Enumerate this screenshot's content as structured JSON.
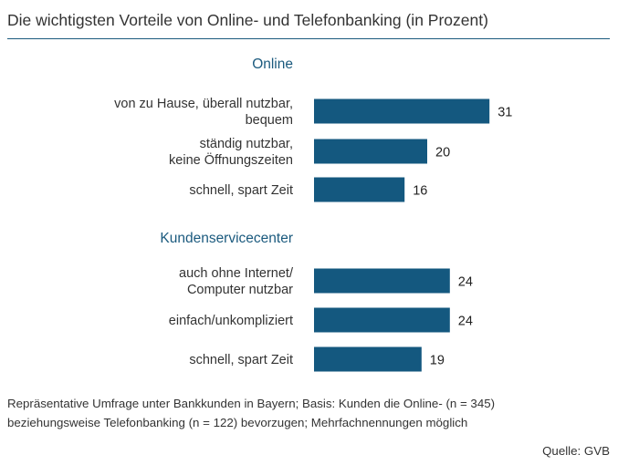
{
  "chart_data": {
    "type": "bar",
    "orientation": "horizontal",
    "title": "Die wichtigsten Vorteile von Online- und Telefonbanking (in Prozent)",
    "groups": [
      {
        "label": "Online",
        "bars": [
          {
            "lines": [
              "von zu Hause, überall nutzbar,",
              "bequem"
            ],
            "value": 31
          },
          {
            "lines": [
              "ständig nutzbar,",
              "keine Öffnungszeiten"
            ],
            "value": 20
          },
          {
            "lines": [
              "schnell, spart Zeit"
            ],
            "value": 16
          }
        ]
      },
      {
        "label": "Kundenservicecenter",
        "bars": [
          {
            "lines": [
              "auch ohne Internet/",
              "Computer nutzbar"
            ],
            "value": 24
          },
          {
            "lines": [
              "einfach/unkompliziert"
            ],
            "value": 24
          },
          {
            "lines": [
              "schnell, spart Zeit"
            ],
            "value": 19
          }
        ]
      }
    ],
    "bar_color": "#14587f",
    "grid": false,
    "legend": "none"
  },
  "footnote": {
    "line1": "Repräsentative Umfrage unter Bankkunden in Bayern; Basis: Kunden die Online- (n = 345)",
    "line2": "beziehungsweise Telefonbanking (n = 122) bevorzugen; Mehrfachnennungen möglich"
  },
  "source": "Quelle: GVB"
}
